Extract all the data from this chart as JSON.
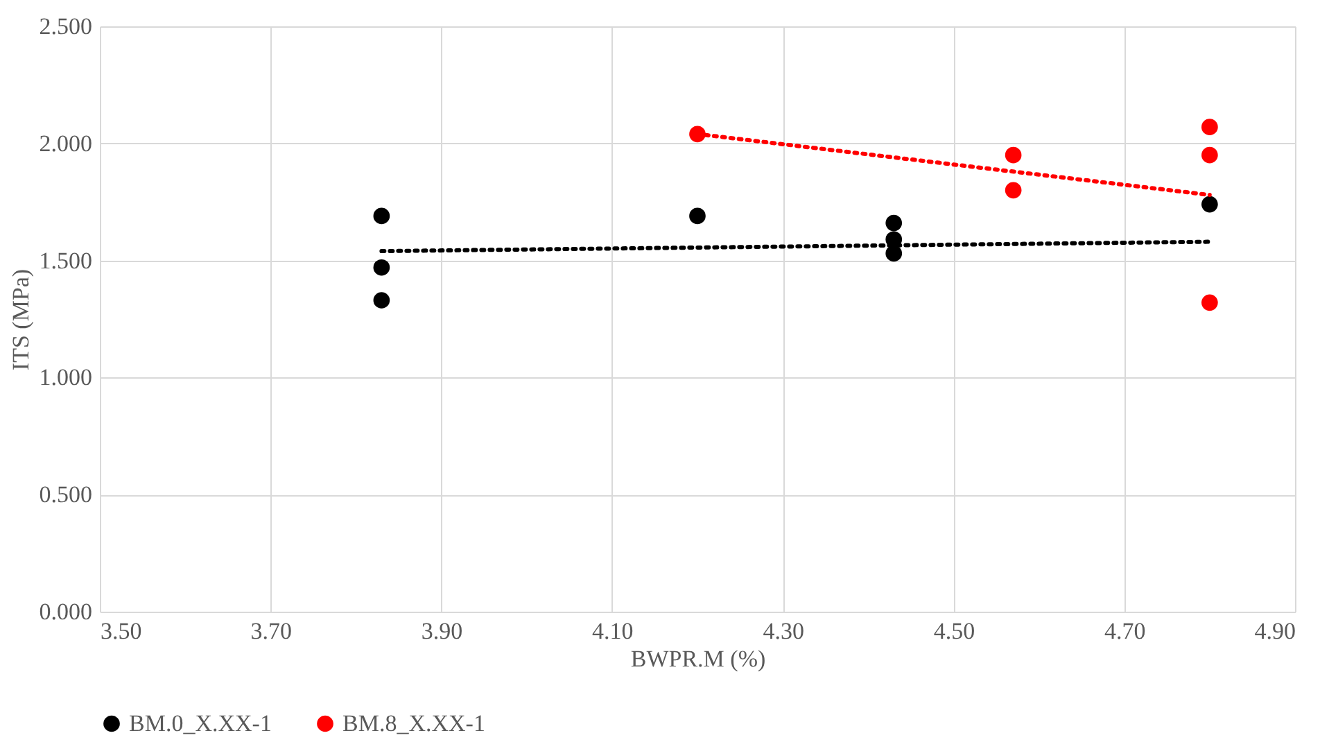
{
  "chart_data": {
    "type": "scatter",
    "xlabel": "BWPR.M (%)",
    "ylabel": "ITS (MPa)",
    "xlim": [
      3.5,
      4.9
    ],
    "xticks": [
      {
        "value": 3.5,
        "label": "3.50"
      },
      {
        "value": 3.7,
        "label": "3.70"
      },
      {
        "value": 3.9,
        "label": "3.90"
      },
      {
        "value": 4.1,
        "label": "4.10"
      },
      {
        "value": 4.3,
        "label": "4.30"
      },
      {
        "value": 4.5,
        "label": "4.50"
      },
      {
        "value": 4.7,
        "label": "4.70"
      },
      {
        "value": 4.9,
        "label": "4.90"
      }
    ],
    "ylim": [
      0,
      2.5
    ],
    "yticks": [
      {
        "value": 0,
        "label": "0.000"
      },
      {
        "value": 0.5,
        "label": "0.500"
      },
      {
        "value": 1,
        "label": "1.000"
      },
      {
        "value": 1.5,
        "label": "1.500"
      },
      {
        "value": 2,
        "label": "2.000"
      },
      {
        "value": 2.5,
        "label": "2.500"
      }
    ],
    "grid": true,
    "legend": "bottom",
    "marker": "circle",
    "series": [
      {
        "name": "BM.0_X.XX-1",
        "color": "#000000",
        "x": [
          3.83,
          3.83,
          3.83,
          4.2,
          4.43,
          4.43,
          4.43,
          4.8
        ],
        "values": [
          1.69,
          1.47,
          1.33,
          1.69,
          1.66,
          1.59,
          1.53,
          1.74
        ]
      },
      {
        "name": "BM.8_X.XX-1",
        "color": "#ff0000",
        "x": [
          4.2,
          4.57,
          4.57,
          4.8,
          4.8,
          4.8
        ],
        "values": [
          2.04,
          1.95,
          1.8,
          2.07,
          1.95,
          1.32
        ]
      },
      {
        "color": "#000000",
        "type": "line",
        "line_style": "dotted",
        "marker": "none",
        "x": [
          3.83,
          4.8
        ],
        "values": [
          1.54,
          1.58
        ]
      },
      {
        "color": "#ff0000",
        "type": "line",
        "line_style": "dotted",
        "marker": "none",
        "x": [
          4.2,
          4.8
        ],
        "values": [
          2.04,
          1.78
        ]
      }
    ]
  }
}
